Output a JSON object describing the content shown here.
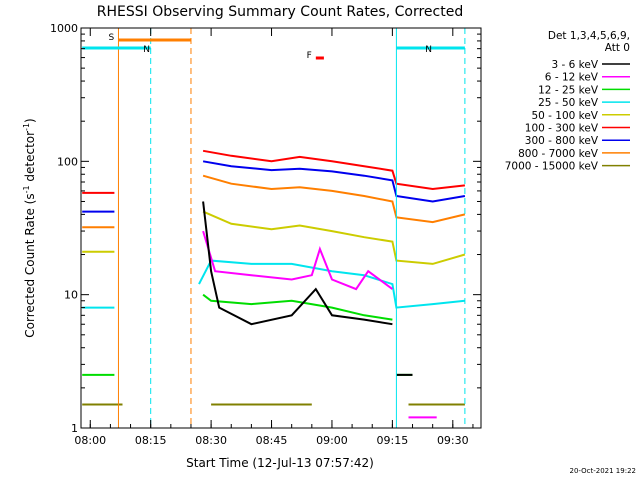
{
  "chart_data": {
    "type": "line",
    "title": "RHESSI Observing Summary Count Rates, Corrected",
    "xlabel": "Start Time (12-Jul-13 07:57:42)",
    "ylabel_main": "Corrected Count Rate (s",
    "ylabel_sup1": "-1",
    "ylabel_mid": " detector",
    "ylabel_sup2": "-1",
    "ylabel_end": ")",
    "yscale": "log",
    "ylim": [
      1,
      1000
    ],
    "xlim": [
      "07:57:42",
      "09:37:00"
    ],
    "x_ticks": [
      "08:00",
      "08:15",
      "08:30",
      "08:45",
      "09:00",
      "09:15",
      "09:30"
    ],
    "y_ticks": [
      "1",
      "10",
      "100",
      "1000"
    ],
    "timestamp": "20-Oct-2021 19:22",
    "legend": {
      "position": "right",
      "header1": "Det 1,3,4,5,6,9,",
      "header2": "Att 0",
      "entries": [
        {
          "label": "3 - 6 keV",
          "color": "#000000"
        },
        {
          "label": "6 - 12 keV",
          "color": "#ff00ff"
        },
        {
          "label": "12 - 25 keV",
          "color": "#00dd00"
        },
        {
          "label": "25 - 50 keV",
          "color": "#00e5ee"
        },
        {
          "label": "50 - 100 keV",
          "color": "#cccc00"
        },
        {
          "label": "100 - 300 keV",
          "color": "#ff0000"
        },
        {
          "label": "300 - 800 keV",
          "color": "#0000ee"
        },
        {
          "label": "800 - 7000 keV",
          "color": "#ff7f00"
        },
        {
          "label": "7000 - 15000 keV",
          "color": "#808000"
        }
      ]
    },
    "flags": [
      {
        "label": "S",
        "color": "#ff7f00",
        "start": "08:07",
        "end": "08:25"
      },
      {
        "label": "N",
        "color": "#00e5ee",
        "start": "07:58",
        "end": "08:15"
      },
      {
        "label": "N",
        "color": "#00e5ee",
        "start": "09:16",
        "end": "09:33"
      },
      {
        "label": "F",
        "color": "#ff0000",
        "start": "08:56",
        "end": "08:58"
      }
    ],
    "vlines": [
      {
        "time": "08:07",
        "color": "#ff7f00",
        "style": "solid"
      },
      {
        "time": "08:15",
        "color": "#00e5ee",
        "style": "dashed"
      },
      {
        "time": "08:25",
        "color": "#ff7f00",
        "style": "dashed"
      },
      {
        "time": "09:16",
        "color": "#00e5ee",
        "style": "solid"
      },
      {
        "time": "09:33",
        "color": "#00e5ee",
        "style": "dashed"
      }
    ],
    "series": [
      {
        "name": "100 - 300 keV",
        "color": "#ff0000",
        "segments": [
          {
            "x": [
              "07:58",
              "08:06"
            ],
            "y": [
              58,
              58
            ]
          },
          {
            "x": [
              "08:28",
              "08:35",
              "08:45",
              "08:52",
              "09:00",
              "09:08",
              "09:15",
              "09:16",
              "09:25",
              "09:33"
            ],
            "y": [
              120,
              110,
              100,
              108,
              100,
              92,
              85,
              68,
              62,
              66
            ]
          }
        ]
      },
      {
        "name": "300 - 800 keV",
        "color": "#0000ee",
        "segments": [
          {
            "x": [
              "07:58",
              "08:06"
            ],
            "y": [
              42,
              42
            ]
          },
          {
            "x": [
              "08:28",
              "08:35",
              "08:45",
              "08:52",
              "09:00",
              "09:08",
              "09:15",
              "09:16",
              "09:25",
              "09:33"
            ],
            "y": [
              100,
              92,
              86,
              88,
              84,
              78,
              72,
              55,
              50,
              55
            ]
          }
        ]
      },
      {
        "name": "800 - 7000 keV",
        "color": "#ff7f00",
        "segments": [
          {
            "x": [
              "07:58",
              "08:06"
            ],
            "y": [
              32,
              32
            ]
          },
          {
            "x": [
              "08:28",
              "08:35",
              "08:45",
              "08:52",
              "09:00",
              "09:08",
              "09:15",
              "09:16",
              "09:25",
              "09:33"
            ],
            "y": [
              78,
              68,
              62,
              64,
              60,
              55,
              50,
              38,
              35,
              40
            ]
          }
        ]
      },
      {
        "name": "50 - 100 keV",
        "color": "#cccc00",
        "segments": [
          {
            "x": [
              "07:58",
              "08:06"
            ],
            "y": [
              21,
              21
            ]
          },
          {
            "x": [
              "08:28",
              "08:35",
              "08:45",
              "08:52",
              "09:00",
              "09:08",
              "09:15",
              "09:16",
              "09:25",
              "09:33"
            ],
            "y": [
              42,
              34,
              31,
              33,
              30,
              27,
              25,
              18,
              17,
              20
            ]
          }
        ]
      },
      {
        "name": "25 - 50 keV",
        "color": "#00e5ee",
        "segments": [
          {
            "x": [
              "07:58",
              "08:06"
            ],
            "y": [
              8,
              8
            ]
          },
          {
            "x": [
              "08:27",
              "08:30",
              "08:40",
              "08:50",
              "09:00",
              "09:08",
              "09:15",
              "09:16",
              "09:25",
              "09:33"
            ],
            "y": [
              12,
              18,
              17,
              17,
              15,
              14,
              12,
              8,
              8.5,
              9
            ]
          }
        ]
      },
      {
        "name": "6 - 12 keV",
        "color": "#ff00ff",
        "segments": [
          {
            "x": [
              "08:28",
              "08:31",
              "08:40",
              "08:50",
              "08:55",
              "08:57",
              "09:00",
              "09:06",
              "09:09",
              "09:15"
            ],
            "y": [
              30,
              15,
              14,
              13,
              14,
              22,
              13,
              11,
              15,
              11
            ]
          },
          {
            "x": [
              "09:19",
              "09:26"
            ],
            "y": [
              1.2,
              1.2
            ]
          }
        ]
      },
      {
        "name": "12 - 25 keV",
        "color": "#00dd00",
        "segments": [
          {
            "x": [
              "07:58",
              "08:06"
            ],
            "y": [
              2.5,
              2.5
            ]
          },
          {
            "x": [
              "08:28",
              "08:30",
              "08:40",
              "08:50",
              "09:00",
              "09:08",
              "09:15"
            ],
            "y": [
              10,
              9,
              8.5,
              9,
              8,
              7,
              6.5
            ]
          },
          {
            "x": [
              "09:16",
              "09:20"
            ],
            "y": [
              2.5,
              2.5
            ]
          }
        ]
      },
      {
        "name": "3 - 6 keV",
        "color": "#000000",
        "segments": [
          {
            "x": [
              "08:28",
              "08:30",
              "08:32",
              "08:40",
              "08:50",
              "08:56",
              "09:00",
              "09:08",
              "09:15"
            ],
            "y": [
              50,
              15,
              8,
              6,
              7,
              11,
              7,
              6.5,
              6
            ]
          },
          {
            "x": [
              "09:16",
              "09:20"
            ],
            "y": [
              2.5,
              2.5
            ]
          }
        ]
      },
      {
        "name": "7000 - 15000 keV",
        "color": "#808000",
        "segments": [
          {
            "x": [
              "07:58",
              "08:08"
            ],
            "y": [
              1.5,
              1.5
            ]
          },
          {
            "x": [
              "08:30",
              "08:55"
            ],
            "y": [
              1.5,
              1.5
            ]
          },
          {
            "x": [
              "09:19",
              "09:33"
            ],
            "y": [
              1.5,
              1.5
            ]
          }
        ]
      }
    ]
  }
}
